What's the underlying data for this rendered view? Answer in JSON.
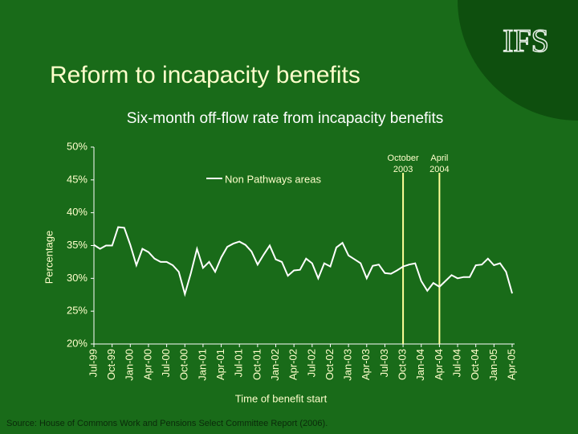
{
  "slide": {
    "title": "Reform to incapacity benefits",
    "logo": "IFS",
    "source": "Source: House of Commons Work and Pensions Select Committee Report (2006)."
  },
  "chart_data": {
    "type": "line",
    "title": "Six-month off-flow rate from incapacity benefits",
    "x_label": "Time of benefit start",
    "y_label": "Percentage",
    "categories": [
      "Jul-99",
      null,
      null,
      "Oct-99",
      null,
      null,
      "Jan-00",
      null,
      null,
      "Apr-00",
      null,
      null,
      "Jul-00",
      null,
      null,
      "Oct-00",
      null,
      null,
      "Jan-01",
      null,
      null,
      "Apr-01",
      null,
      null,
      "Jul-01",
      null,
      null,
      "Oct-01",
      null,
      null,
      "Jan-02",
      null,
      null,
      "Apr-02",
      null,
      null,
      "Jul-02",
      null,
      null,
      "Oct-02",
      null,
      null,
      "Jan-03",
      null,
      null,
      "Apr-03",
      null,
      null,
      "Jul-03",
      null,
      null,
      "Oct-03",
      null,
      null,
      "Jan-04",
      null,
      null,
      "Apr-04",
      null,
      null,
      "Jul-04",
      null,
      null,
      "Oct-04",
      null,
      null,
      "Jan-05",
      null,
      null,
      "Apr-05"
    ],
    "series": [
      {
        "name": "Non Pathways areas",
        "color": "#ffffff",
        "values": [
          35.1,
          34.5,
          35.0,
          35.0,
          37.8,
          37.7,
          35.1,
          32.0,
          34.5,
          34.0,
          33.0,
          32.5,
          32.5,
          32.0,
          31.0,
          27.6,
          30.8,
          34.5,
          31.6,
          32.5,
          31.0,
          33.2,
          34.8,
          35.3,
          35.6,
          35.1,
          34.1,
          32.1,
          33.6,
          35.0,
          32.9,
          32.5,
          30.4,
          31.2,
          31.3,
          33.0,
          32.3,
          30.0,
          32.3,
          31.8,
          34.7,
          35.4,
          33.5,
          32.9,
          32.3,
          30.0,
          31.9,
          32.1,
          30.8,
          30.7,
          31.2,
          31.8,
          32.1,
          32.3,
          29.6,
          28.1,
          29.3,
          28.7,
          29.6,
          30.5,
          30.0,
          30.2,
          30.2,
          32.0,
          32.1,
          33.0,
          32.0,
          32.3,
          31.0,
          27.7
        ]
      }
    ],
    "ylim": [
      20,
      50
    ],
    "yticks": [
      {
        "value": 20,
        "label": "20%"
      },
      {
        "value": 25,
        "label": "25%"
      },
      {
        "value": 30,
        "label": "30%"
      },
      {
        "value": 35,
        "label": "35%"
      },
      {
        "value": 40,
        "label": "40%"
      },
      {
        "value": 45,
        "label": "45%"
      },
      {
        "value": 50,
        "label": "50%"
      }
    ],
    "annotations": [
      {
        "at": "Oct-03",
        "lines": [
          "October",
          "2003"
        ],
        "color": "#ffff99"
      },
      {
        "at": "Apr-04",
        "lines": [
          "April",
          "2004"
        ],
        "color": "#ffff99"
      }
    ],
    "legend": "top"
  }
}
